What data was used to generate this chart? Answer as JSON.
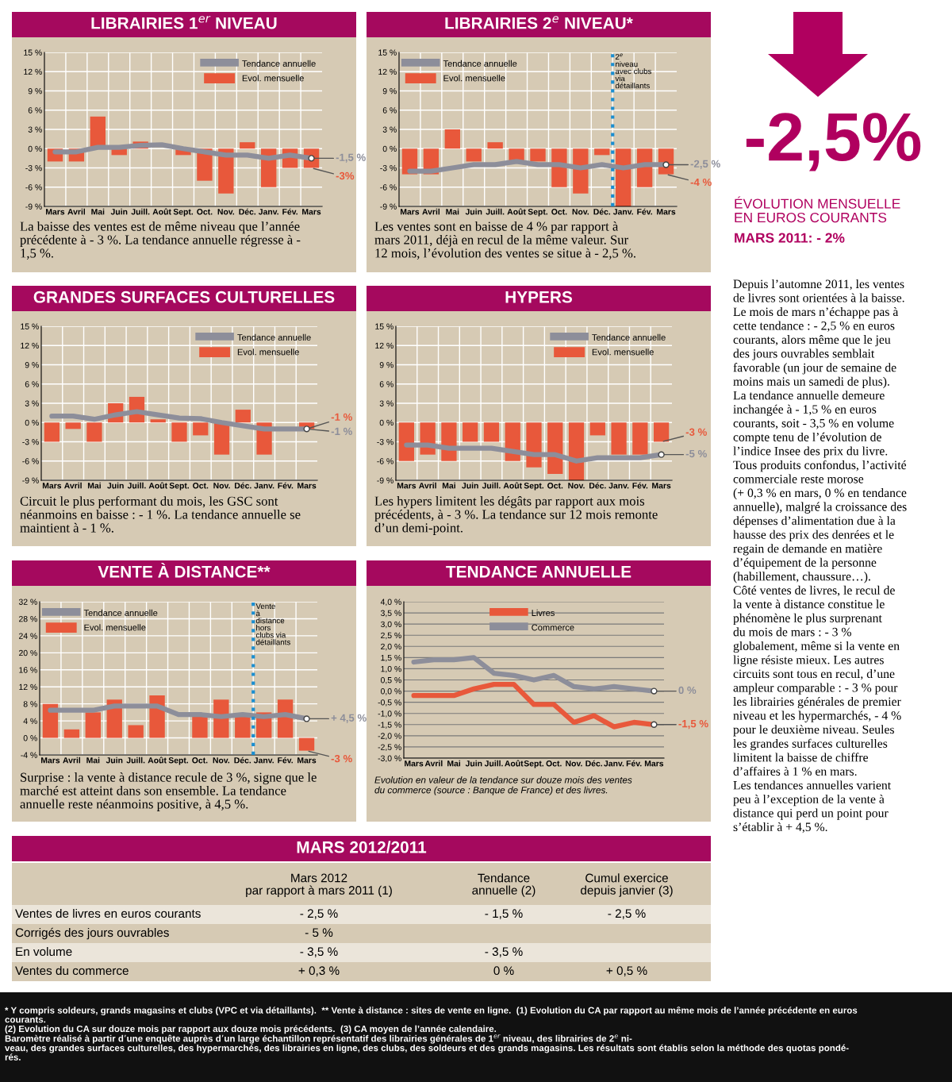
{
  "chart_data": [
    {
      "type": "bar",
      "title": "LIBRAIRIES 1$^{er}$ NIVEAU",
      "categories": [
        "Mars",
        "Avril",
        "Mai",
        "Juin",
        "Juill.",
        "Août",
        "Sept.",
        "Oct.",
        "Nov.",
        "Déc.",
        "Janv.",
        "Fév.",
        "Mars"
      ],
      "series": [
        {
          "name": "Tendance annuelle",
          "type": "line",
          "color": "#8d8e9a",
          "values": [
            -0.5,
            -0.5,
            0.2,
            0.2,
            0.5,
            0.6,
            0,
            -0.5,
            -1,
            -1,
            -1.5,
            -1,
            -1.5
          ],
          "value_labels": [
            null,
            null,
            null,
            null,
            null,
            null,
            null,
            null,
            null,
            null,
            null,
            null,
            "-1,5 %"
          ]
        },
        {
          "name": "Evol. mensuelle",
          "type": "bar",
          "color": "#e8583b",
          "values": [
            -2,
            -2,
            5,
            -1,
            1.1,
            0,
            -1,
            -5,
            -7,
            1,
            -6,
            -3,
            -3
          ],
          "value_labels": [
            null,
            null,
            null,
            null,
            null,
            null,
            null,
            null,
            null,
            null,
            null,
            null,
            "-3%"
          ]
        }
      ],
      "ylim": [
        -9,
        15
      ],
      "yticks": [
        {
          "value": -9,
          "label": "-9 %"
        },
        {
          "value": -6,
          "label": "-6 %"
        },
        {
          "value": -3,
          "label": "-3 %"
        },
        {
          "value": 0,
          "label": "0 %"
        },
        {
          "value": 3,
          "label": "3 %"
        },
        {
          "value": 6,
          "label": "6 %"
        },
        {
          "value": 9,
          "label": "9 %"
        },
        {
          "value": 12,
          "label": "12 %"
        },
        {
          "value": 15,
          "label": "15 %"
        }
      ],
      "grid": true,
      "legend": "top right",
      "annotations": [
        "La baisse des ventes est de même niveau que l’année\nprécédente à - 3 %. La tendance annuelle régresse à -\n1,5 %."
      ]
    },
    {
      "type": "bar",
      "title": "LIBRAIRIES 2$^{e}$ NIVEAU*",
      "categories": [
        "Mars",
        "Avril",
        "Mai",
        "Juin",
        "Juill.",
        "Août",
        "Sept.",
        "Oct.",
        "Nov.",
        "Déc.",
        "Janv.",
        "Fév.",
        "Mars"
      ],
      "series": [
        {
          "name": "Tendance annuelle",
          "type": "line",
          "color": "#8d8e9a",
          "values": [
            -3.5,
            -3.5,
            -3,
            -2.5,
            -2.5,
            -2,
            -2.5,
            -2.5,
            -3,
            -2.5,
            -3,
            -2.5,
            -2.5
          ],
          "value_labels": [
            null,
            null,
            null,
            null,
            null,
            null,
            null,
            null,
            null,
            null,
            null,
            null,
            "-2,5 %"
          ]
        },
        {
          "name": "Evol. mensuelle",
          "type": "bar",
          "color": "#e8583b",
          "values": [
            -4,
            -4,
            3,
            -2,
            1,
            -2,
            -2,
            -6,
            -7,
            -1,
            -9,
            -6,
            -4
          ],
          "value_labels": [
            null,
            null,
            null,
            null,
            null,
            null,
            null,
            null,
            null,
            null,
            null,
            null,
            "-4 %"
          ]
        }
      ],
      "ylim": [
        -9,
        15
      ],
      "yticks": [
        {
          "value": -9,
          "label": "-9 %"
        },
        {
          "value": -6,
          "label": "-6 %"
        },
        {
          "value": -3,
          "label": "-3 %"
        },
        {
          "value": 0,
          "label": "0 %"
        },
        {
          "value": 3,
          "label": "3 %"
        },
        {
          "value": 6,
          "label": "6 %"
        },
        {
          "value": 9,
          "label": "9 %"
        },
        {
          "value": 12,
          "label": "12 %"
        },
        {
          "value": 15,
          "label": "15 %"
        }
      ],
      "grid": true,
      "legend": "top left",
      "ref_lines": [
        {
          "axis": "x",
          "value": "Janv.",
          "label": "2$^{e}$\nniveau\navec clubs\nvia\ndétaillants",
          "color": "#1b8ed0",
          "line_style": "dotted"
        }
      ],
      "annotations": [
        "Les ventes sont en baisse de 4 % par rapport à\nmars 2011, déjà en recul de la même valeur. Sur\n12 mois, l’évolution des ventes se situe à - 2,5 %."
      ]
    },
    {
      "type": "bar",
      "title": "GRANDES SURFACES CULTURELLES",
      "categories": [
        "Mars",
        "Avril",
        "Mai",
        "Juin",
        "Juill.",
        "Août",
        "Sept.",
        "Oct.",
        "Nov.",
        "Déc.",
        "Janv.",
        "Fév.",
        "Mars"
      ],
      "series": [
        {
          "name": "Tendance annuelle",
          "type": "line",
          "color": "#8d8e9a",
          "values": [
            1,
            1,
            0.5,
            1.2,
            1.7,
            1.2,
            0.7,
            0.6,
            0,
            -0.5,
            -1,
            -1,
            -1
          ],
          "value_labels": [
            null,
            null,
            null,
            null,
            null,
            null,
            null,
            null,
            null,
            null,
            null,
            null,
            "-1 %"
          ]
        },
        {
          "name": "Evol. mensuelle",
          "type": "bar",
          "color": "#e8583b",
          "values": [
            -3,
            -1,
            -3,
            3,
            4,
            0.5,
            -3,
            -2,
            -5,
            2,
            -5,
            null,
            -1
          ],
          "value_labels": [
            null,
            null,
            null,
            null,
            null,
            null,
            null,
            null,
            null,
            null,
            null,
            null,
            "-1 %"
          ]
        }
      ],
      "ylim": [
        -9,
        15
      ],
      "yticks": [
        {
          "value": -9,
          "label": "-9 %"
        },
        {
          "value": -6,
          "label": "-6 %"
        },
        {
          "value": -3,
          "label": "-3 %"
        },
        {
          "value": 0,
          "label": "0 %"
        },
        {
          "value": 3,
          "label": "3 %"
        },
        {
          "value": 6,
          "label": "6 %"
        },
        {
          "value": 9,
          "label": "9 %"
        },
        {
          "value": 12,
          "label": "12 %"
        },
        {
          "value": 15,
          "label": "15 %"
        }
      ],
      "grid": true,
      "legend": "top right",
      "annotations": [
        "Circuit le plus performant du mois, les GSC sont\nnéanmoins en baisse : - 1 %. La tendance annuelle se\nmaintient à - 1 %."
      ]
    },
    {
      "type": "bar",
      "title": "HYPERS",
      "categories": [
        "Mars",
        "Avril",
        "Mai",
        "Juin",
        "Juill.",
        "Août",
        "Sept.",
        "Oct.",
        "Nov.",
        "Déc.",
        "Janv.",
        "Fév.",
        "Mars"
      ],
      "series": [
        {
          "name": "Tendance annuelle",
          "type": "line",
          "color": "#8d8e9a",
          "values": [
            -3.5,
            -3.5,
            -4,
            -4,
            -4,
            -4.5,
            -5,
            -5,
            -6,
            -5.5,
            -5.5,
            -5.5,
            -5
          ],
          "value_labels": [
            null,
            null,
            null,
            null,
            null,
            null,
            null,
            null,
            null,
            null,
            null,
            null,
            "-5 %"
          ]
        },
        {
          "name": "Evol. mensuelle",
          "type": "bar",
          "color": "#e8583b",
          "values": [
            -6,
            -5,
            -6,
            -3,
            -3,
            -6,
            -7,
            -8,
            -9,
            -2,
            -5,
            -5,
            -3
          ],
          "value_labels": [
            null,
            null,
            null,
            null,
            null,
            null,
            null,
            null,
            null,
            null,
            null,
            null,
            "-3 %"
          ]
        }
      ],
      "ylim": [
        -9,
        15
      ],
      "yticks": [
        {
          "value": -9,
          "label": "-9 %"
        },
        {
          "value": -6,
          "label": "-6 %"
        },
        {
          "value": -3,
          "label": "-3 %"
        },
        {
          "value": 0,
          "label": "0 %"
        },
        {
          "value": 3,
          "label": "3 %"
        },
        {
          "value": 6,
          "label": "6 %"
        },
        {
          "value": 9,
          "label": "9 %"
        },
        {
          "value": 12,
          "label": "12 %"
        },
        {
          "value": 15,
          "label": "15 %"
        }
      ],
      "grid": true,
      "legend": "top right",
      "annotations": [
        "Les hypers limitent les dégâts par rapport aux mois\nprécédents, à - 3 %. La tendance sur 12 mois remonte\nd’un demi-point."
      ]
    },
    {
      "type": "bar",
      "title": "VENTE À DISTANCE**",
      "categories": [
        "Mars",
        "Avril",
        "Mai",
        "Juin",
        "Juill.",
        "Août",
        "Sept.",
        "Oct.",
        "Nov.",
        "Déc.",
        "Janv.",
        "Fév.",
        "Mars"
      ],
      "series": [
        {
          "name": "Tendance annuelle",
          "type": "line",
          "color": "#8d8e9a",
          "values": [
            6.5,
            6.5,
            6.5,
            7.5,
            7.5,
            7.5,
            5.5,
            5.5,
            5,
            5.5,
            5,
            5.5,
            4.5
          ],
          "value_labels": [
            null,
            null,
            null,
            null,
            null,
            null,
            null,
            null,
            null,
            null,
            null,
            null,
            "+ 4,5 %"
          ]
        },
        {
          "name": "Evol. mensuelle",
          "type": "bar",
          "color": "#e8583b",
          "values": [
            8,
            2,
            6,
            9,
            3,
            10,
            0,
            5,
            9,
            5,
            6,
            9,
            -3
          ],
          "value_labels": [
            null,
            null,
            null,
            null,
            null,
            null,
            null,
            null,
            null,
            null,
            null,
            null,
            "-3 %"
          ]
        }
      ],
      "ylim": [
        -4,
        32
      ],
      "yticks": [
        {
          "value": -4,
          "label": "-4 %"
        },
        {
          "value": 0,
          "label": "0 %"
        },
        {
          "value": 4,
          "label": "4 %"
        },
        {
          "value": 8,
          "label": "8 %"
        },
        {
          "value": 12,
          "label": "12 %"
        },
        {
          "value": 16,
          "label": "16 %"
        },
        {
          "value": 20,
          "label": "20 %"
        },
        {
          "value": 24,
          "label": "24 %"
        },
        {
          "value": 28,
          "label": "28 %"
        },
        {
          "value": 32,
          "label": "32 %"
        }
      ],
      "grid": true,
      "legend": "top left",
      "ref_lines": [
        {
          "axis": "x",
          "value": "Janv.",
          "label": "Vente\nà\ndistance\nhors\nclubs via\ndétaillants",
          "color": "#1b8ed0",
          "line_style": "dotted"
        }
      ],
      "annotations": [
        "Surprise : la vente à distance recule de 3 %, signe que le\nmarché est atteint dans son ensemble. La tendance\nannuelle reste néanmoins positive, à 4,5 %."
      ]
    },
    {
      "type": "line",
      "title": "TENDANCE ANNUELLE",
      "categories": [
        "Mars",
        "Avril",
        "Mai",
        "Juin",
        "Juill.",
        "Août",
        "Sept.",
        "Oct.",
        "Nov.",
        "Déc.",
        "Janv.",
        "Fév.",
        "Mars"
      ],
      "series": [
        {
          "name": "Livres",
          "color": "#e8583b",
          "values": [
            -0.2,
            -0.2,
            -0.2,
            0.1,
            0.3,
            0.3,
            -0.6,
            -0.6,
            -1.4,
            -1.1,
            -1.6,
            -1.4,
            -1.5
          ],
          "value_labels": [
            null,
            null,
            null,
            null,
            null,
            null,
            null,
            null,
            null,
            null,
            null,
            null,
            "-1,5 %"
          ]
        },
        {
          "name": "Commerce",
          "color": "#8d8e9a",
          "values": [
            1.3,
            1.4,
            1.4,
            1.5,
            0.8,
            0.7,
            0.5,
            0.7,
            0.2,
            0.1,
            0.2,
            0.1,
            0
          ],
          "value_labels": [
            null,
            null,
            null,
            null,
            null,
            null,
            null,
            null,
            null,
            null,
            null,
            null,
            "0 %"
          ]
        }
      ],
      "ylim": [
        -3,
        4
      ],
      "yticks": [
        {
          "value": -3,
          "label": "-3,0 %"
        },
        {
          "value": -2.5,
          "label": "-2,5 %"
        },
        {
          "value": -2,
          "label": "-2,0 %"
        },
        {
          "value": -1.5,
          "label": "-1,5 %"
        },
        {
          "value": -1,
          "label": "-1,0 %"
        },
        {
          "value": -0.5,
          "label": "-0,5 %"
        },
        {
          "value": 0,
          "label": "0,0 %"
        },
        {
          "value": 0.5,
          "label": "0,5 %"
        },
        {
          "value": 1,
          "label": "1,0 %"
        },
        {
          "value": 1.5,
          "label": "1,5 %"
        },
        {
          "value": 2,
          "label": "2,0 %"
        },
        {
          "value": 2.5,
          "label": "2,5 %"
        },
        {
          "value": 3,
          "label": "3,0 %"
        },
        {
          "value": 3.5,
          "label": "3,5 %"
        },
        {
          "value": 4,
          "label": "4,0 %"
        }
      ],
      "grid": "y",
      "legend": "top",
      "annotations": [
        "Evolution en valeur de la tendance sur douze mois des ventes\ndu commerce (source : Banque de France) et des livres."
      ]
    },
    {
      "type": "other",
      "title": "MARS 2012/2011",
      "categories": [
        "Mars 2012\npar rapport à mars 2011 (1)",
        "Tendance\nannuelle (2)",
        "Cumul exercice\ndepuis janvier (3)"
      ],
      "y_categories": [
        "Ventes de livres en euros courants",
        "Corrigés des jours ouvrables",
        "En volume",
        "Ventes du commerce"
      ],
      "cell_labels": [
        [
          "- 2,5 %",
          "- 1,5 %",
          "- 2,5 %"
        ],
        [
          "- 5 %",
          null,
          null
        ],
        [
          "- 3,5 %",
          "- 3,5 %",
          null
        ],
        [
          "+ 0,3 %",
          "0 %",
          "+ 0,5 %"
        ]
      ]
    },
    {
      "type": "other",
      "title": "-2,5%",
      "subtitle": "ÉVOLUTION MENSUELLE\nEN EUROS COURANTS",
      "annotations": [
        "MARS 2011: - 2%",
        "Depuis l’automne 2011, les ventes\nde livres sont orientées à la baisse.\nLe mois de mars n’échappe pas à\ncette tendance : - 2,5 % en euros\ncourants, alors même que le jeu\ndes jours ouvrables semblait\nfavorable (un jour de semaine de\nmoins mais un samedi de plus).\nLa tendance annuelle demeure\ninchangée à - 1,5 % en euros\ncourants, soit - 3,5 % en volume\ncompte tenu de l’évolution de\nl’indice Insee des prix du livre.\nTous produits confondus, l’activité\ncommerciale reste morose\n(+ 0,3 % en mars, 0 % en tendance\nannuelle), malgré la croissance des\ndépenses d’alimentation due à la\nhausse des prix des denrées et le\nregain de demande en matière\nd’équipement de la personne\n(habillement, chaussure…).\nCôté ventes de livres, le recul de\nla vente à distance constitue le\nphénomène le plus surprenant\ndu mois de mars : - 3 %\nglobalement, même si la vente en\nligne résiste mieux. Les autres\ncircuits sont tous en recul, d’une\nampleur comparable : - 3 % pour\nles librairies générales de premier\nniveau et les hypermarchés, - 4 %\npour le deuxième niveau. Seules\nles grandes surfaces culturelles\nlimitent la baisse de chiffre\nd’affaires à 1 % en mars.\nLes tendances annuelles varient\npeu à l’exception de la vente à\ndistance qui perd un point pour\ns’établir à + 4,5 %."
      ]
    },
    {
      "type": "other",
      "annotations": [
        "* Y compris soldeurs, grands magasins et clubs (VPC et via détaillants).  ** Vente à distance : sites de vente en ligne.  (1) Evolution du CA par rapport au même mois de l’année précédente en euros\ncourants.\n(2) Evolution du CA sur douze mois par rapport aux douze mois précédents.  (3) CA moyen de l’année calendaire.\nBaromètre réalisé à partir d’une enquête auprès d’un large échantillon représentatif des librairies générales de 1$^{er}$ niveau, des librairies de 2$^{e}$ ni-\nveau, des grandes surfaces culturelles, des hypermarchés, des librairies en ligne, des clubs, des soldeurs et des grands magasins. Les résultats sont établis selon la méthode des quotas pondé-\nrés."
      ]
    }
  ]
}
